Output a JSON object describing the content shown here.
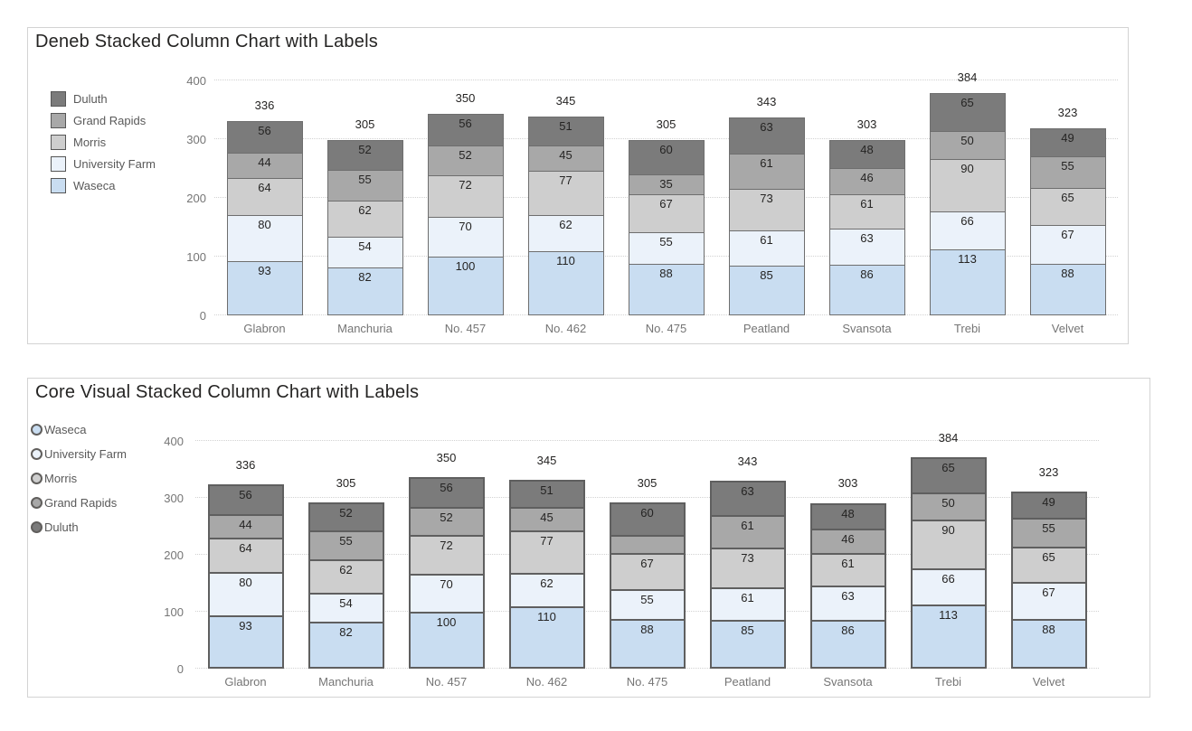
{
  "theme": {
    "background": "#ffffff",
    "visual_border": "#d3d3d3",
    "grid_color": "#d2d2d2",
    "axis_text_color": "#757575",
    "data_label_color": "#252423",
    "total_label_color": "#252423",
    "legend_text_color": "#595959",
    "title_color": "#252423",
    "segment_border_deneb": "#6e6e6e",
    "segment_border_core": "#5f5f5f"
  },
  "chart_data": [
    {
      "id": "deneb",
      "type": "bar",
      "variant": "stacked-column",
      "title": "Deneb Stacked Column Chart with Labels",
      "categories": [
        "Glabron",
        "Manchuria",
        "No. 457",
        "No. 462",
        "No. 475",
        "Peatland",
        "Svansota",
        "Trebi",
        "Velvet"
      ],
      "series": [
        {
          "name": "Waseca",
          "color": "#c9ddf1",
          "values": [
            93,
            82,
            100,
            110,
            88,
            85,
            86,
            113,
            88
          ]
        },
        {
          "name": "University Farm",
          "color": "#ebf2fa",
          "values": [
            80,
            54,
            70,
            62,
            55,
            61,
            63,
            66,
            67
          ]
        },
        {
          "name": "Morris",
          "color": "#cecece",
          "values": [
            64,
            62,
            72,
            77,
            67,
            73,
            61,
            90,
            65
          ]
        },
        {
          "name": "Grand Rapids",
          "color": "#a8a8a8",
          "values": [
            44,
            55,
            52,
            45,
            35,
            61,
            46,
            50,
            55
          ]
        },
        {
          "name": "Duluth",
          "color": "#7b7b7b",
          "values": [
            56,
            52,
            56,
            51,
            60,
            63,
            48,
            65,
            49
          ]
        }
      ],
      "totals": [
        336,
        305,
        350,
        345,
        305,
        343,
        303,
        384,
        323
      ],
      "xlabel": "",
      "ylabel": "",
      "ylim": [
        0,
        400
      ],
      "yticks": [
        0,
        100,
        200,
        300,
        400
      ],
      "grid": "dotted",
      "legend": {
        "position": "left",
        "marker": "square",
        "items": [
          "Duluth",
          "Grand Rapids",
          "Morris",
          "University Farm",
          "Waseca"
        ]
      },
      "hidden_segment_labels": []
    },
    {
      "id": "core-visual",
      "type": "bar",
      "variant": "stacked-column",
      "title": "Core Visual Stacked Column Chart with Labels",
      "categories": [
        "Glabron",
        "Manchuria",
        "No. 457",
        "No. 462",
        "No. 475",
        "Peatland",
        "Svansota",
        "Trebi",
        "Velvet"
      ],
      "series": [
        {
          "name": "Waseca",
          "color": "#c9ddf1",
          "values": [
            93,
            82,
            100,
            110,
            88,
            85,
            86,
            113,
            88
          ]
        },
        {
          "name": "University Farm",
          "color": "#ebf2fa",
          "values": [
            80,
            54,
            70,
            62,
            55,
            61,
            63,
            66,
            67
          ]
        },
        {
          "name": "Morris",
          "color": "#cecece",
          "values": [
            64,
            62,
            72,
            77,
            67,
            73,
            61,
            90,
            65
          ]
        },
        {
          "name": "Grand Rapids",
          "color": "#a8a8a8",
          "values": [
            44,
            55,
            52,
            45,
            35,
            61,
            46,
            50,
            55
          ]
        },
        {
          "name": "Duluth",
          "color": "#7b7b7b",
          "values": [
            56,
            52,
            56,
            51,
            60,
            63,
            48,
            65,
            49
          ]
        }
      ],
      "totals": [
        336,
        305,
        350,
        345,
        305,
        343,
        303,
        384,
        323
      ],
      "xlabel": "",
      "ylabel": "",
      "ylim": [
        0,
        400
      ],
      "yticks": [
        0,
        100,
        200,
        300,
        400
      ],
      "grid": "dotted",
      "legend": {
        "position": "left",
        "marker": "circle",
        "items": [
          "Waseca",
          "University Farm",
          "Morris",
          "Grand Rapids",
          "Duluth"
        ]
      },
      "hidden_segment_labels": [
        {
          "series": "Grand Rapids",
          "category": "No. 475"
        }
      ]
    }
  ]
}
